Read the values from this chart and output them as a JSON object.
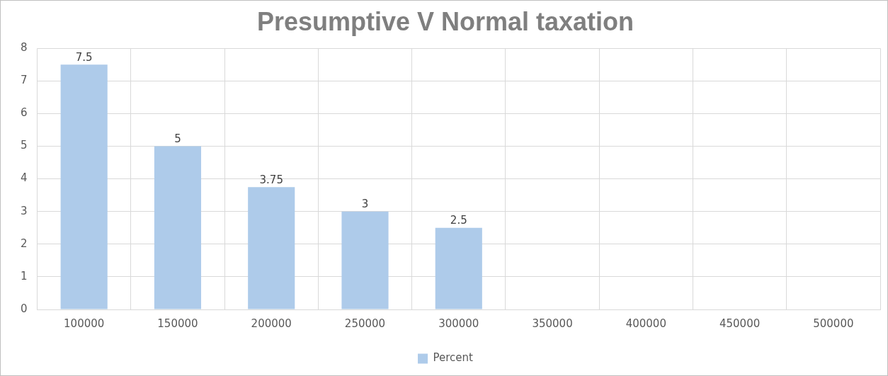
{
  "chart_data": {
    "type": "bar",
    "title": "Presumptive V Normal taxation",
    "categories": [
      "100000",
      "150000",
      "200000",
      "250000",
      "300000",
      "350000",
      "400000",
      "450000",
      "500000"
    ],
    "series": [
      {
        "name": "Percent",
        "color": "#aecbea",
        "values": [
          7.5,
          5,
          3.75,
          3,
          2.5,
          null,
          null,
          null,
          null
        ]
      }
    ],
    "ylim": [
      0,
      8
    ],
    "yticks": [
      0,
      1,
      2,
      3,
      4,
      5,
      6,
      7,
      8
    ],
    "grid": true,
    "legend": "bottom",
    "data_labels": true
  }
}
